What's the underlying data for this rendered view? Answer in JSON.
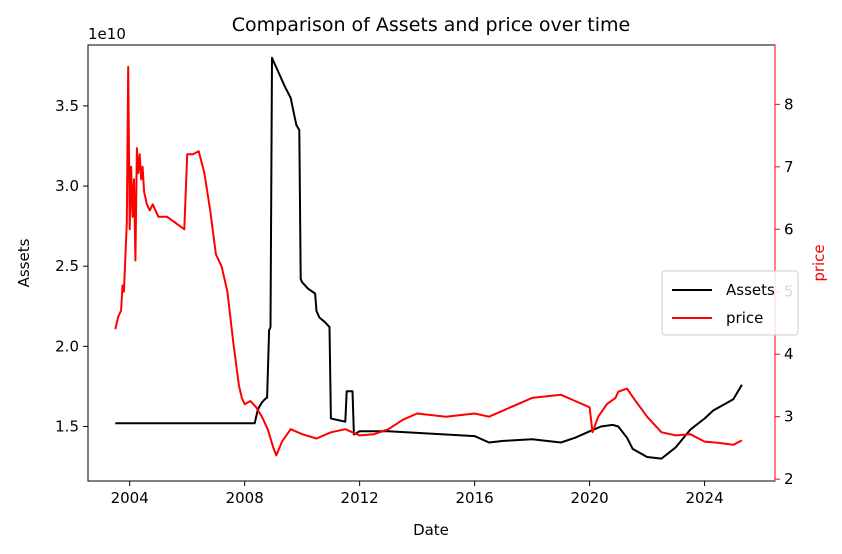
{
  "chart_data": {
    "type": "line",
    "title": "Comparison of Assets and price over time",
    "xlabel": "Date",
    "ylabel_left": "Assets",
    "ylabel_right": "price",
    "offset_text_left": "1e10",
    "x_ticks": [
      "2004",
      "2008",
      "2012",
      "2016",
      "2020",
      "2024"
    ],
    "x_tick_values": [
      2004,
      2008,
      2012,
      2016,
      2020,
      2024
    ],
    "xlim": [
      2002.55,
      2026.45
    ],
    "left_ticks": [
      "1.5",
      "2.0",
      "2.5",
      "3.0",
      "3.5"
    ],
    "left_tick_values": [
      1.5,
      2.0,
      2.5,
      3.0,
      3.5
    ],
    "left_ylim": [
      1.16,
      3.88
    ],
    "right_ticks": [
      "2",
      "3",
      "4",
      "5",
      "6",
      "7",
      "8"
    ],
    "right_tick_values": [
      2,
      3,
      4,
      5,
      6,
      7,
      8
    ],
    "right_ylim": [
      1.97,
      8.95
    ],
    "legend_position": "center-right",
    "grid": false,
    "colors": {
      "assets": "#000000",
      "price": "#ff0000",
      "right_axis": "#ff0000"
    },
    "series": [
      {
        "name": "Assets",
        "axis": "left",
        "color": "#000000",
        "x": [
          2003.5,
          2005.0,
          2007.0,
          2008.0,
          2008.35,
          2008.45,
          2008.5,
          2008.6,
          2008.7,
          2008.78,
          2008.85,
          2008.9,
          2008.95,
          2009.0,
          2009.2,
          2009.4,
          2009.6,
          2009.75,
          2009.8,
          2009.9,
          2009.95,
          2010.0,
          2010.2,
          2010.45,
          2010.5,
          2010.6,
          2010.8,
          2010.95,
          2011.0,
          2011.5,
          2011.55,
          2011.75,
          2011.8,
          2011.9,
          2012.0,
          2013.0,
          2014.0,
          2015.0,
          2016.0,
          2016.5,
          2017.0,
          2018.0,
          2019.0,
          2019.5,
          2020.0,
          2020.4,
          2020.8,
          2021.0,
          2021.3,
          2021.5,
          2022.0,
          2022.5,
          2023.0,
          2023.5,
          2024.0,
          2024.3,
          2024.7,
          2025.0,
          2025.3
        ],
        "values": [
          1.52,
          1.52,
          1.52,
          1.52,
          1.52,
          1.6,
          1.62,
          1.65,
          1.67,
          1.68,
          2.1,
          2.12,
          3.8,
          3.78,
          3.7,
          3.62,
          3.55,
          3.42,
          3.38,
          3.35,
          2.42,
          2.4,
          2.36,
          2.33,
          2.22,
          2.18,
          2.15,
          2.12,
          1.55,
          1.53,
          1.72,
          1.72,
          1.45,
          1.46,
          1.47,
          1.47,
          1.46,
          1.45,
          1.44,
          1.4,
          1.41,
          1.42,
          1.4,
          1.43,
          1.47,
          1.5,
          1.51,
          1.5,
          1.43,
          1.36,
          1.31,
          1.3,
          1.37,
          1.48,
          1.55,
          1.6,
          1.64,
          1.67,
          1.76
        ]
      },
      {
        "name": "price",
        "axis": "right",
        "color": "#ff0000",
        "x": [
          2003.5,
          2003.6,
          2003.7,
          2003.75,
          2003.8,
          2003.9,
          2003.95,
          2004.0,
          2004.05,
          2004.1,
          2004.15,
          2004.2,
          2004.25,
          2004.3,
          2004.35,
          2004.4,
          2004.45,
          2004.5,
          2004.6,
          2004.7,
          2004.8,
          2005.0,
          2005.3,
          2005.6,
          2005.9,
          2006.0,
          2006.2,
          2006.4,
          2006.6,
          2006.8,
          2007.0,
          2007.2,
          2007.4,
          2007.6,
          2007.8,
          2007.9,
          2008.0,
          2008.2,
          2008.4,
          2008.6,
          2008.8,
          2009.0,
          2009.1,
          2009.3,
          2009.6,
          2010.0,
          2010.5,
          2011.0,
          2011.5,
          2012.0,
          2012.5,
          2013.0,
          2013.5,
          2014.0,
          2015.0,
          2016.0,
          2016.5,
          2017.0,
          2018.0,
          2019.0,
          2019.5,
          2020.0,
          2020.1,
          2020.3,
          2020.6,
          2020.9,
          2021.0,
          2021.3,
          2021.6,
          2022.0,
          2022.5,
          2023.0,
          2023.5,
          2024.0,
          2024.5,
          2025.0,
          2025.3
        ],
        "values": [
          4.4,
          4.6,
          4.7,
          5.1,
          5.0,
          6.1,
          8.6,
          6.0,
          7.0,
          6.2,
          6.8,
          5.5,
          7.3,
          6.9,
          7.2,
          6.8,
          7.0,
          6.6,
          6.4,
          6.3,
          6.4,
          6.2,
          6.2,
          6.1,
          6.0,
          7.2,
          7.2,
          7.25,
          6.9,
          6.3,
          5.6,
          5.4,
          5.0,
          4.2,
          3.5,
          3.3,
          3.2,
          3.25,
          3.15,
          3.0,
          2.8,
          2.5,
          2.38,
          2.6,
          2.8,
          2.72,
          2.65,
          2.75,
          2.8,
          2.7,
          2.72,
          2.8,
          2.95,
          3.05,
          3.0,
          3.05,
          3.0,
          3.1,
          3.3,
          3.35,
          3.25,
          3.15,
          2.75,
          3.0,
          3.2,
          3.3,
          3.4,
          3.45,
          3.25,
          3.0,
          2.75,
          2.7,
          2.72,
          2.6,
          2.58,
          2.55,
          2.62
        ]
      }
    ]
  }
}
